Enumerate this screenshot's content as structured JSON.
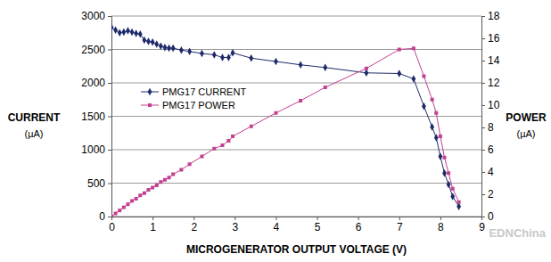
{
  "chart_data": {
    "type": "line",
    "x_label": "MICROGENERATOR OUTPUT VOLTAGE (V)",
    "y_label": [
      "CURRENT",
      "(µA)"
    ],
    "y2_label": [
      "POWER",
      "(µA)"
    ],
    "x": [
      0,
      0.1,
      0.2,
      0.3,
      0.4,
      0.5,
      0.6,
      0.7,
      0.8,
      0.9,
      1.0,
      1.1,
      1.2,
      1.3,
      1.4,
      1.5,
      1.7,
      1.9,
      2.2,
      2.5,
      2.7,
      2.85,
      2.95,
      3.4,
      4.0,
      4.6,
      5.2,
      6.2,
      7.0,
      7.35,
      7.6,
      7.8,
      7.9,
      8.0,
      8.1,
      8.2,
      8.3,
      8.45
    ],
    "series": [
      {
        "name": "PMG17 CURRENT",
        "color": "#1f2a6b",
        "marker": "diamond",
        "line_style": "solid",
        "values": [
          2830,
          2790,
          2750,
          2760,
          2780,
          2760,
          2740,
          2730,
          2640,
          2620,
          2610,
          2580,
          2550,
          2530,
          2520,
          2520,
          2490,
          2470,
          2440,
          2420,
          2380,
          2380,
          2450,
          2370,
          2320,
          2270,
          2230,
          2150,
          2140,
          2060,
          1650,
          1340,
          1180,
          900,
          650,
          480,
          300,
          150
        ]
      },
      {
        "name": "PMG17 POWER",
        "color": "#c2408f",
        "marker": "square",
        "line_style": "solid",
        "axis": "y2",
        "values": [
          0,
          0.28,
          0.55,
          0.83,
          1.1,
          1.4,
          1.6,
          1.9,
          2.1,
          2.4,
          2.6,
          2.8,
          3.1,
          3.3,
          3.5,
          3.8,
          4.2,
          4.7,
          5.4,
          6.1,
          6.4,
          6.8,
          7.2,
          8.1,
          9.3,
          10.4,
          11.6,
          13.3,
          15.0,
          15.1,
          12.6,
          10.5,
          9.3,
          7.2,
          5.3,
          3.9,
          2.5,
          1.3
        ]
      }
    ],
    "xlim": [
      0,
      9
    ],
    "xticks": [
      0,
      1,
      2,
      3,
      4,
      5,
      6,
      7,
      8,
      9
    ],
    "ylim": [
      0,
      3000
    ],
    "yticks": [
      0,
      500,
      1000,
      1500,
      2000,
      2500,
      3000
    ],
    "y2lim": [
      0,
      18
    ],
    "y2ticks": [
      0,
      2,
      4,
      6,
      8,
      10,
      12,
      14,
      16,
      18
    ],
    "grid": true,
    "legend": "upper left",
    "annotations": [
      {
        "text": "EDNChina"
      }
    ]
  }
}
